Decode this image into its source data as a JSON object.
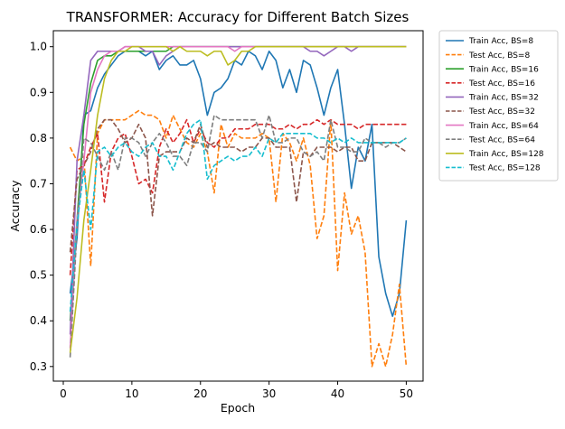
{
  "chart_data": {
    "type": "line",
    "title": "TRANSFORMER: Accuracy for Different Batch Sizes",
    "xlabel": "Epoch",
    "ylabel": "Accuracy",
    "xlim": [
      -1.45,
      52.45
    ],
    "ylim": [
      0.268,
      1.035
    ],
    "xticks": [
      0,
      10,
      20,
      30,
      40,
      50
    ],
    "yticks": [
      0.3,
      0.4,
      0.5,
      0.6,
      0.7,
      0.8,
      0.9,
      1.0
    ],
    "xtick_labels": [
      "0",
      "10",
      "20",
      "30",
      "40",
      "50"
    ],
    "ytick_labels": [
      "0.3",
      "0.4",
      "0.5",
      "0.6",
      "0.7",
      "0.8",
      "0.9",
      "1.0"
    ],
    "grid": false,
    "legend_position": "outside-top-right",
    "x": [
      1,
      2,
      3,
      4,
      5,
      6,
      7,
      8,
      9,
      10,
      11,
      12,
      13,
      14,
      15,
      16,
      17,
      18,
      19,
      20,
      21,
      22,
      23,
      24,
      25,
      26,
      27,
      28,
      29,
      30,
      31,
      32,
      33,
      34,
      35,
      36,
      37,
      38,
      39,
      40,
      41,
      42,
      43,
      44,
      45,
      46,
      47,
      48,
      49,
      50
    ],
    "series": [
      {
        "name": "Train Acc, BS=8",
        "color": "#1f77b4",
        "dash": "solid",
        "values": [
          0.46,
          0.58,
          0.85,
          0.86,
          0.91,
          0.94,
          0.96,
          0.98,
          0.99,
          0.99,
          0.99,
          0.98,
          0.99,
          0.95,
          0.97,
          0.98,
          0.96,
          0.96,
          0.97,
          0.93,
          0.85,
          0.9,
          0.91,
          0.93,
          0.97,
          0.96,
          0.99,
          0.98,
          0.95,
          0.99,
          0.97,
          0.91,
          0.95,
          0.9,
          0.97,
          0.96,
          0.91,
          0.85,
          0.91,
          0.95,
          0.83,
          0.69,
          0.78,
          0.75,
          0.83,
          0.54,
          0.46,
          0.41,
          0.46,
          0.62
        ]
      },
      {
        "name": "Test Acc, BS=8",
        "color": "#ff7f0e",
        "dash": "dashed",
        "values": [
          0.78,
          0.75,
          0.76,
          0.52,
          0.81,
          0.84,
          0.84,
          0.84,
          0.84,
          0.85,
          0.86,
          0.85,
          0.85,
          0.84,
          0.8,
          0.85,
          0.82,
          0.79,
          0.78,
          0.81,
          0.77,
          0.68,
          0.83,
          0.78,
          0.81,
          0.8,
          0.8,
          0.8,
          0.81,
          0.8,
          0.66,
          0.81,
          0.79,
          0.75,
          0.8,
          0.74,
          0.58,
          0.63,
          0.84,
          0.51,
          0.68,
          0.59,
          0.63,
          0.55,
          0.3,
          0.35,
          0.3,
          0.37,
          0.48,
          0.3
        ]
      },
      {
        "name": "Train Acc, BS=16",
        "color": "#2ca02c",
        "dash": "solid",
        "values": [
          0.4,
          0.62,
          0.83,
          0.92,
          0.97,
          0.98,
          0.98,
          0.99,
          0.99,
          0.99,
          0.99,
          0.99,
          0.99,
          0.99,
          0.99,
          1.0,
          1.0,
          1.0,
          1.0,
          1.0,
          1.0,
          1.0,
          1.0,
          1.0,
          1.0,
          1.0,
          1.0,
          1.0,
          1.0,
          1.0,
          1.0,
          1.0,
          1.0,
          1.0,
          1.0,
          1.0,
          1.0,
          1.0,
          1.0,
          1.0,
          1.0,
          1.0,
          1.0,
          1.0,
          1.0,
          1.0,
          1.0,
          1.0,
          1.0,
          1.0
        ]
      },
      {
        "name": "Test Acc, BS=16",
        "color": "#d62728",
        "dash": "dashed",
        "values": [
          0.5,
          0.73,
          0.74,
          0.78,
          0.81,
          0.66,
          0.77,
          0.8,
          0.81,
          0.76,
          0.7,
          0.71,
          0.68,
          0.78,
          0.82,
          0.79,
          0.81,
          0.84,
          0.79,
          0.82,
          0.79,
          0.78,
          0.8,
          0.8,
          0.82,
          0.82,
          0.82,
          0.83,
          0.83,
          0.83,
          0.82,
          0.82,
          0.83,
          0.82,
          0.83,
          0.83,
          0.84,
          0.83,
          0.84,
          0.83,
          0.83,
          0.83,
          0.82,
          0.83,
          0.83,
          0.83,
          0.83,
          0.83,
          0.83,
          0.83
        ]
      },
      {
        "name": "Train Acc, BS=32",
        "color": "#9467bd",
        "dash": "solid",
        "values": [
          0.37,
          0.75,
          0.85,
          0.97,
          0.99,
          0.99,
          0.99,
          0.99,
          1.0,
          1.0,
          1.0,
          0.99,
          0.99,
          0.96,
          0.98,
          0.99,
          1.0,
          1.0,
          1.0,
          1.0,
          1.0,
          1.0,
          1.0,
          1.0,
          1.0,
          1.0,
          1.0,
          1.0,
          1.0,
          1.0,
          1.0,
          1.0,
          1.0,
          1.0,
          1.0,
          0.99,
          0.99,
          0.98,
          0.99,
          1.0,
          1.0,
          0.99,
          1.0,
          1.0,
          1.0,
          1.0,
          1.0,
          1.0,
          1.0,
          1.0
        ]
      },
      {
        "name": "Test Acc, BS=32",
        "color": "#8c564b",
        "dash": "dashed",
        "values": [
          0.55,
          0.71,
          0.74,
          0.77,
          0.82,
          0.84,
          0.84,
          0.82,
          0.79,
          0.8,
          0.83,
          0.8,
          0.63,
          0.76,
          0.77,
          0.77,
          0.77,
          0.8,
          0.79,
          0.83,
          0.78,
          0.79,
          0.78,
          0.78,
          0.78,
          0.77,
          0.78,
          0.78,
          0.8,
          0.8,
          0.78,
          0.78,
          0.78,
          0.66,
          0.77,
          0.76,
          0.78,
          0.78,
          0.78,
          0.77,
          0.78,
          0.78,
          0.75,
          0.75,
          0.79,
          0.79,
          0.79,
          0.79,
          0.78,
          0.77
        ]
      },
      {
        "name": "Train Acc, BS=64",
        "color": "#e377c2",
        "dash": "solid",
        "values": [
          0.34,
          0.62,
          0.75,
          0.9,
          0.95,
          0.98,
          0.99,
          0.99,
          1.0,
          1.0,
          1.0,
          1.0,
          1.0,
          1.0,
          1.0,
          1.0,
          1.0,
          1.0,
          1.0,
          1.0,
          1.0,
          1.0,
          1.0,
          1.0,
          0.99,
          1.0,
          1.0,
          1.0,
          1.0,
          1.0,
          1.0,
          1.0,
          1.0,
          1.0,
          1.0,
          1.0,
          1.0,
          1.0,
          1.0,
          1.0,
          1.0,
          1.0,
          1.0,
          1.0,
          1.0,
          1.0,
          1.0,
          1.0,
          1.0,
          1.0
        ]
      },
      {
        "name": "Test Acc, BS=64",
        "color": "#7f7f7f",
        "dash": "dashed",
        "values": [
          0.32,
          0.6,
          0.8,
          0.79,
          0.76,
          0.73,
          0.77,
          0.73,
          0.8,
          0.8,
          0.79,
          0.76,
          0.79,
          0.81,
          0.79,
          0.76,
          0.76,
          0.74,
          0.79,
          0.79,
          0.77,
          0.85,
          0.84,
          0.84,
          0.84,
          0.84,
          0.84,
          0.84,
          0.8,
          0.85,
          0.79,
          0.79,
          0.8,
          0.8,
          0.77,
          0.76,
          0.77,
          0.75,
          0.84,
          0.78,
          0.78,
          0.77,
          0.77,
          0.8,
          0.79,
          0.79,
          0.78,
          0.79,
          0.79,
          0.8
        ]
      },
      {
        "name": "Train Acc, BS=128",
        "color": "#bcbd22",
        "dash": "solid",
        "values": [
          0.33,
          0.45,
          0.62,
          0.73,
          0.85,
          0.93,
          0.97,
          0.99,
          0.99,
          1.0,
          1.0,
          1.0,
          1.0,
          1.0,
          1.0,
          0.99,
          1.0,
          0.99,
          0.99,
          0.99,
          0.98,
          0.99,
          0.99,
          0.96,
          0.97,
          0.99,
          0.99,
          1.0,
          1.0,
          1.0,
          1.0,
          1.0,
          1.0,
          1.0,
          1.0,
          1.0,
          1.0,
          1.0,
          1.0,
          1.0,
          1.0,
          1.0,
          1.0,
          1.0,
          1.0,
          1.0,
          1.0,
          1.0,
          1.0,
          1.0
        ]
      },
      {
        "name": "Test Acc, BS=128",
        "color": "#17becf",
        "dash": "dashed",
        "values": [
          0.42,
          0.61,
          0.73,
          0.6,
          0.77,
          0.78,
          0.76,
          0.78,
          0.79,
          0.77,
          0.76,
          0.78,
          0.79,
          0.76,
          0.76,
          0.73,
          0.77,
          0.81,
          0.83,
          0.84,
          0.71,
          0.74,
          0.75,
          0.76,
          0.75,
          0.76,
          0.76,
          0.78,
          0.76,
          0.8,
          0.79,
          0.81,
          0.81,
          0.81,
          0.81,
          0.81,
          0.8,
          0.8,
          0.79,
          0.8,
          0.79,
          0.8,
          0.79,
          0.79,
          0.79,
          0.79,
          0.79,
          0.79,
          0.79,
          0.8
        ]
      }
    ]
  }
}
